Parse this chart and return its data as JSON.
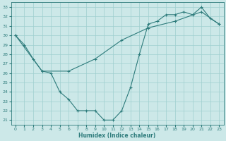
{
  "xlabel": "Humidex (Indice chaleur)",
  "background_color": "#cce8e8",
  "grid_color": "#9fcfcf",
  "line_color": "#2d7b7b",
  "xlim": [
    -0.5,
    23.5
  ],
  "ylim": [
    20.5,
    33.5
  ],
  "xticks": [
    0,
    1,
    2,
    3,
    4,
    5,
    6,
    7,
    8,
    9,
    10,
    11,
    12,
    13,
    14,
    15,
    16,
    17,
    18,
    19,
    20,
    21,
    22,
    23
  ],
  "yticks": [
    21,
    22,
    23,
    24,
    25,
    26,
    27,
    28,
    29,
    30,
    31,
    32,
    33
  ],
  "line1_x": [
    0,
    1,
    2,
    3,
    4,
    5,
    6,
    7,
    8,
    9,
    10,
    11,
    12,
    13,
    14,
    15,
    16,
    17,
    18,
    19,
    20,
    21,
    22,
    23
  ],
  "line1_y": [
    30.0,
    29.0,
    27.5,
    26.2,
    26.0,
    24.0,
    23.2,
    22.0,
    22.0,
    22.0,
    21.0,
    21.0,
    22.0,
    24.5,
    28.0,
    31.2,
    31.5,
    32.2,
    32.2,
    32.5,
    32.2,
    33.0,
    31.8,
    31.2
  ],
  "line2_x": [
    0,
    3,
    6,
    9,
    12,
    15,
    18,
    21,
    23
  ],
  "line2_y": [
    30.0,
    26.2,
    26.2,
    27.5,
    29.5,
    30.8,
    31.5,
    32.5,
    31.2
  ]
}
